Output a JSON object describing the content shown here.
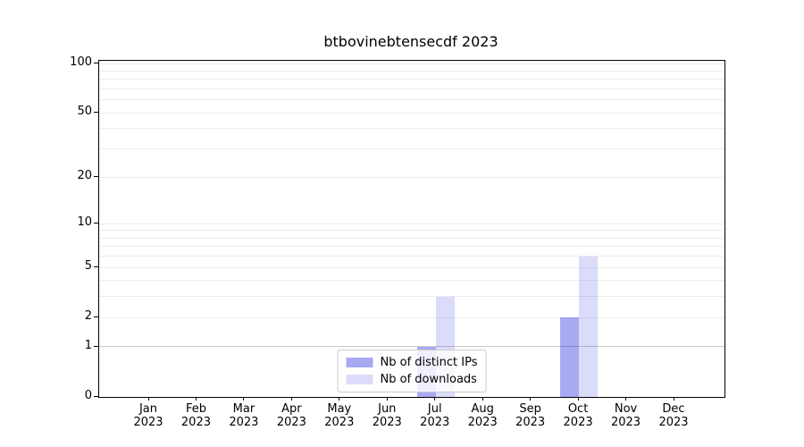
{
  "chart_data": {
    "type": "bar",
    "title": "btbovinebtensecdf 2023",
    "categories": [
      "Jan 2023",
      "Feb 2023",
      "Mar 2023",
      "Apr 2023",
      "May 2023",
      "Jun 2023",
      "Jul 2023",
      "Aug 2023",
      "Sep 2023",
      "Oct 2023",
      "Nov 2023",
      "Dec 2023"
    ],
    "series": [
      {
        "name": "Nb of distinct IPs",
        "fill": "rgba(30,30,224,0.38)",
        "values": [
          0,
          0,
          0,
          0,
          0,
          0,
          1,
          0,
          0,
          2,
          0,
          0
        ]
      },
      {
        "name": "Nb of downloads",
        "fill": "rgba(30,30,224,0.16)",
        "values": [
          0,
          0,
          0,
          0,
          0,
          0,
          3,
          0,
          0,
          6,
          0,
          0
        ]
      }
    ],
    "xlabel": "",
    "ylabel": "",
    "y_scale": "log1p",
    "y_ticks": [
      0,
      1,
      2,
      5,
      10,
      20,
      50,
      100
    ],
    "y_minor_gridlines": [
      2,
      3,
      4,
      5,
      6,
      7,
      8,
      9,
      10,
      20,
      30,
      40,
      50,
      60,
      70,
      80,
      90,
      100
    ],
    "y_highlight_gridline": 1,
    "ylim": [
      0,
      104
    ],
    "grid": true,
    "legend_position": "lower center"
  },
  "colors": {
    "background": "#ffffff",
    "spine": "#000000",
    "grid_minor": "#ebebeb",
    "grid_highlight": "#c9c9c9",
    "text": "#000000",
    "legend_border": "#cccccc"
  }
}
